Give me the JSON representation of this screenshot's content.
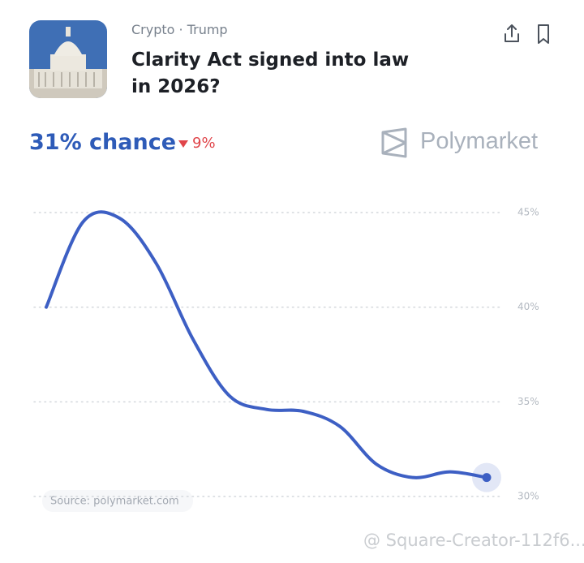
{
  "header": {
    "category": "Crypto · Trump",
    "title": "Clarity Act signed into law in 2026?"
  },
  "summary": {
    "chance": "31% chance",
    "change": "9%"
  },
  "brand": "Polymarket",
  "chart_data": {
    "type": "line",
    "categories": [
      null,
      null,
      null,
      null,
      null,
      null,
      null,
      null,
      null,
      null,
      null,
      null,
      null
    ],
    "values": [
      40.0,
      44.5,
      44.7,
      42.3,
      38.3,
      35.3,
      34.6,
      34.5,
      33.7,
      31.7,
      31.0,
      31.3,
      31.0
    ],
    "color": "#3d5fc4",
    "ylim": [
      30,
      45
    ],
    "yticks": [
      {
        "value": 30,
        "label": "30%"
      },
      {
        "value": 35,
        "label": "35%"
      },
      {
        "value": 40,
        "label": "40%"
      },
      {
        "value": 45,
        "label": "45%"
      }
    ],
    "grid": true,
    "source": "Source: polymarket.com"
  },
  "watermark": "@ Square-Creator-112f6..."
}
